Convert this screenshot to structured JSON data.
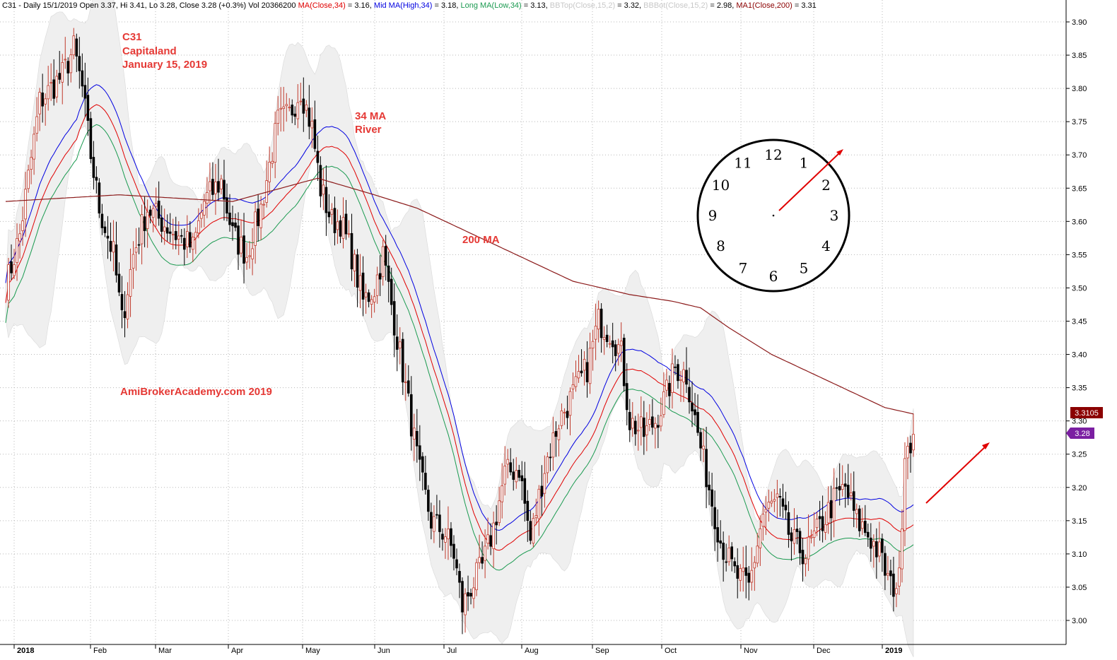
{
  "header": {
    "parts": [
      {
        "text": "C31 - Daily 15/1/2019 Open 3.37, Hi 3.41, Lo 3.28, Close 3.28 (+0.3%) Vol 20366200 ",
        "color": "#000000"
      },
      {
        "text": "MA(Close,34)",
        "color": "#e00000"
      },
      {
        "text": " = 3.16, ",
        "color": "#000000"
      },
      {
        "text": "Mid MA(High,34)",
        "color": "#0000e0"
      },
      {
        "text": " = 3.18, ",
        "color": "#000000"
      },
      {
        "text": "Long MA(Low,34)",
        "color": "#1a9a50"
      },
      {
        "text": " = 3.13, ",
        "color": "#000000"
      },
      {
        "text": "BBTop(Close,15,2)",
        "color": "#c8c8c8"
      },
      {
        "text": " = 3.32, ",
        "color": "#000000"
      },
      {
        "text": "BBBot(Close,15,2)",
        "color": "#c8c8c8"
      },
      {
        "text": " = 2.98, ",
        "color": "#000000"
      },
      {
        "text": "MA1(Close,200)",
        "color": "#8b0000"
      },
      {
        "text": " = 3.31",
        "color": "#000000"
      }
    ]
  },
  "annotations": {
    "title_lines": [
      "C31",
      "Capitaland",
      "January 15, 2019"
    ],
    "ma34": [
      "34 MA",
      "River"
    ],
    "ma200": "200 MA",
    "site": "AmiBrokerAcademy.com  2019"
  },
  "clock_numbers": [
    "12",
    "1",
    "2",
    "3",
    "4",
    "5",
    "6",
    "7",
    "8",
    "9",
    "10",
    "11"
  ],
  "price_tags": {
    "ma200_value": "3.3105",
    "close_value": "3.28",
    "ma200_color": "#8b0000",
    "close_color": "#7b1fa2"
  },
  "colors": {
    "bullish": "#c0392b",
    "bearish": "#000000",
    "ma_close": "#e00000",
    "ma_high": "#0000e0",
    "ma_low": "#1a9a50",
    "ma200": "#8b1a1a",
    "band_fill": "#efefef",
    "arrow": "#e00000",
    "annotation": "#e53935"
  },
  "chart_data": {
    "type": "candlestick",
    "x_labels": [
      "2018",
      "Feb",
      "Mar",
      "Apr",
      "May",
      "Jun",
      "Jul",
      "Aug",
      "Sep",
      "Oct",
      "Nov",
      "Dec",
      "2019"
    ],
    "y_ticks": [
      3.0,
      3.05,
      3.1,
      3.15,
      3.2,
      3.25,
      3.3,
      3.35,
      3.4,
      3.45,
      3.5,
      3.55,
      3.6,
      3.65,
      3.7,
      3.75,
      3.8,
      3.85,
      3.9
    ],
    "ylim": [
      2.965,
      3.935
    ],
    "grid": true,
    "close_path": [
      [
        0,
        3.5
      ],
      [
        5,
        3.58
      ],
      [
        12,
        3.78
      ],
      [
        20,
        3.82
      ],
      [
        24,
        3.86
      ],
      [
        27,
        3.8
      ],
      [
        30,
        3.7
      ],
      [
        33,
        3.62
      ],
      [
        38,
        3.55
      ],
      [
        41,
        3.45
      ],
      [
        45,
        3.55
      ],
      [
        50,
        3.62
      ],
      [
        55,
        3.6
      ],
      [
        60,
        3.58
      ],
      [
        66,
        3.56
      ],
      [
        70,
        3.63
      ],
      [
        76,
        3.66
      ],
      [
        80,
        3.58
      ],
      [
        85,
        3.55
      ],
      [
        90,
        3.62
      ],
      [
        96,
        3.75
      ],
      [
        100,
        3.76
      ],
      [
        104,
        3.8
      ],
      [
        108,
        3.74
      ],
      [
        111,
        3.65
      ],
      [
        115,
        3.6
      ],
      [
        118,
        3.6
      ],
      [
        122,
        3.55
      ],
      [
        126,
        3.48
      ],
      [
        130,
        3.5
      ],
      [
        133,
        3.55
      ],
      [
        137,
        3.45
      ],
      [
        141,
        3.35
      ],
      [
        146,
        3.22
      ],
      [
        150,
        3.15
      ],
      [
        155,
        3.13
      ],
      [
        158,
        3.1
      ],
      [
        161,
        3.02
      ],
      [
        164,
        3.05
      ],
      [
        168,
        3.08
      ],
      [
        172,
        3.14
      ],
      [
        176,
        3.22
      ],
      [
        181,
        3.23
      ],
      [
        185,
        3.12
      ],
      [
        190,
        3.23
      ],
      [
        195,
        3.3
      ],
      [
        200,
        3.34
      ],
      [
        205,
        3.38
      ],
      [
        209,
        3.45
      ],
      [
        214,
        3.43
      ],
      [
        217,
        3.4
      ],
      [
        220,
        3.3
      ],
      [
        225,
        3.28
      ],
      [
        229,
        3.3
      ],
      [
        233,
        3.34
      ],
      [
        236,
        3.38
      ],
      [
        240,
        3.37
      ],
      [
        244,
        3.28
      ],
      [
        248,
        3.2
      ],
      [
        252,
        3.12
      ],
      [
        257,
        3.07
      ],
      [
        262,
        3.05
      ],
      [
        267,
        3.16
      ],
      [
        272,
        3.18
      ],
      [
        277,
        3.12
      ],
      [
        282,
        3.1
      ],
      [
        287,
        3.14
      ],
      [
        292,
        3.18
      ],
      [
        296,
        3.2
      ],
      [
        300,
        3.15
      ],
      [
        304,
        3.13
      ],
      [
        308,
        3.1
      ],
      [
        312,
        3.05
      ],
      [
        315,
        3.06
      ],
      [
        317,
        3.26
      ],
      [
        320,
        3.28
      ]
    ],
    "ma200_path": [
      [
        0,
        3.63
      ],
      [
        40,
        3.64
      ],
      [
        80,
        3.63
      ],
      [
        110,
        3.665
      ],
      [
        130,
        3.64
      ],
      [
        145,
        3.62
      ],
      [
        160,
        3.59
      ],
      [
        180,
        3.55
      ],
      [
        200,
        3.51
      ],
      [
        210,
        3.5
      ],
      [
        220,
        3.49
      ],
      [
        235,
        3.48
      ],
      [
        245,
        3.47
      ],
      [
        255,
        3.44
      ],
      [
        270,
        3.4
      ],
      [
        290,
        3.36
      ],
      [
        310,
        3.32
      ],
      [
        320,
        3.3105
      ]
    ],
    "last_close": 3.28,
    "ma200_last": 3.3105
  }
}
